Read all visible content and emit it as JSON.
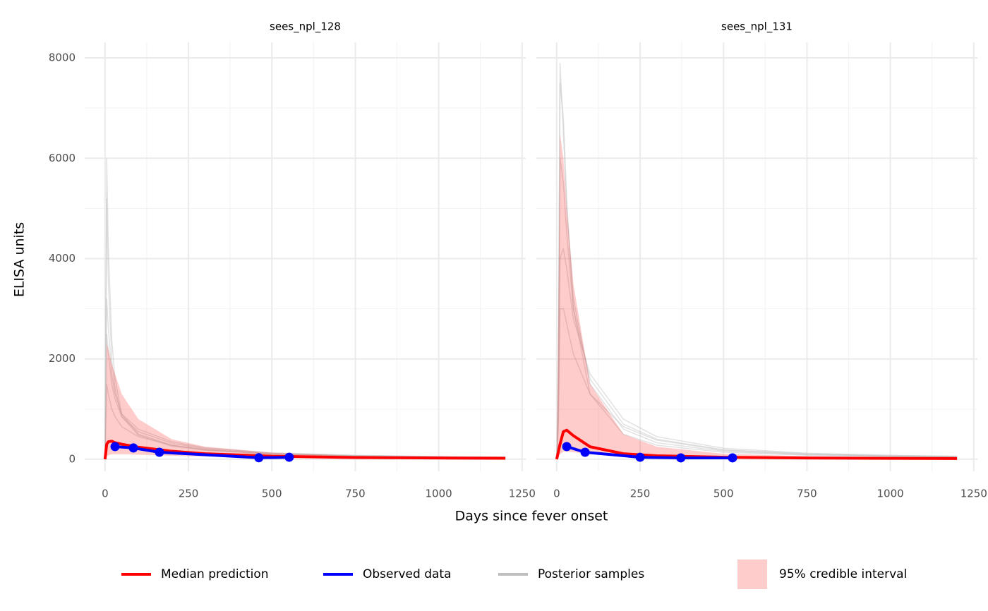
{
  "chart_data": [
    {
      "type": "line",
      "title": "sees_npl_128",
      "xlabel": "Days since fever onset",
      "ylabel": "ELISA units",
      "xlim": [
        -61,
        1261
      ],
      "ylim": [
        -240,
        8310
      ],
      "xticks": [
        0,
        250,
        500,
        750,
        1000,
        1250
      ],
      "xminor": [
        125,
        375,
        625,
        875,
        1125
      ],
      "yticks": [
        0,
        2000,
        4000,
        6000,
        8000
      ],
      "yminor": [
        1000,
        3000,
        5000,
        7000
      ],
      "grid": true,
      "x": [
        0,
        5,
        10,
        20,
        30,
        50,
        100,
        200,
        300,
        500,
        750,
        1000,
        1200
      ],
      "band": {
        "name": "95% credible interval",
        "color": "#ff0000",
        "alpha": 0.2,
        "upper": [
          0,
          2300,
          2200,
          1900,
          1700,
          1300,
          800,
          400,
          250,
          130,
          70,
          45,
          35
        ],
        "lower": [
          0,
          60,
          80,
          100,
          100,
          100,
          90,
          70,
          55,
          35,
          20,
          15,
          12
        ]
      },
      "series": [
        {
          "name": "Median prediction",
          "color": "#ff0000",
          "values": [
            0,
            300,
            350,
            360,
            330,
            300,
            240,
            160,
            110,
            60,
            35,
            25,
            20
          ]
        },
        {
          "name": "Observed data",
          "color": "#0000ff",
          "x": [
            30,
            85,
            163,
            461,
            552
          ],
          "values": [
            253,
            225,
            140,
            30,
            40
          ]
        },
        {
          "name": "Posterior samples",
          "color": "#bebebe",
          "samples": [
            [
              0,
              6000,
              4200,
              2400,
              1600,
              900,
              500,
              280,
              190,
              110,
              70,
              50,
              40
            ],
            [
              0,
              5200,
              3500,
              2000,
              1400,
              850,
              480,
              260,
              180,
              100,
              65,
              45,
              38
            ],
            [
              0,
              3200,
              2600,
              1700,
              1300,
              900,
              600,
              350,
              230,
              130,
              80,
              55,
              45
            ],
            [
              0,
              2500,
              2100,
              1500,
              1200,
              850,
              550,
              320,
              210,
              120,
              75,
              50,
              40
            ],
            [
              0,
              1500,
              1300,
              1000,
              850,
              650,
              450,
              280,
              190,
              110,
              70,
              48,
              38
            ]
          ]
        }
      ]
    },
    {
      "type": "line",
      "title": "sees_npl_131",
      "xlim": [
        -61,
        1261
      ],
      "ylim": [
        -240,
        8310
      ],
      "xticks": [
        0,
        250,
        500,
        750,
        1000,
        1250
      ],
      "xminor": [
        125,
        375,
        625,
        875,
        1125
      ],
      "yticks": [
        0,
        2000,
        4000,
        6000,
        8000
      ],
      "yminor": [
        1000,
        3000,
        5000,
        7000
      ],
      "grid": true,
      "x": [
        0,
        5,
        10,
        20,
        30,
        50,
        100,
        200,
        300,
        500,
        750,
        1000,
        1200
      ],
      "band": {
        "color": "#ff0000",
        "alpha": 0.2,
        "upper": [
          0,
          3000,
          6500,
          6000,
          5000,
          3500,
          1500,
          500,
          250,
          110,
          60,
          40,
          30
        ],
        "lower": [
          0,
          50,
          100,
          150,
          150,
          140,
          110,
          60,
          40,
          25,
          15,
          10,
          8
        ]
      },
      "series": [
        {
          "color": "#ff0000",
          "values": [
            0,
            150,
            300,
            550,
            580,
            470,
            250,
            110,
            70,
            40,
            25,
            18,
            15
          ]
        },
        {
          "color": "#0000ff",
          "x": [
            30,
            85,
            250,
            372,
            527
          ],
          "values": [
            253,
            140,
            40,
            28,
            28
          ]
        },
        {
          "color": "#bebebe",
          "samples": [
            [
              0,
              2000,
              7900,
              6500,
              5000,
              3200,
              1500,
              600,
              330,
              160,
              90,
              60,
              48
            ],
            [
              0,
              1500,
              7500,
              6800,
              5200,
              3000,
              1300,
              500,
              280,
              140,
              80,
              55,
              44
            ],
            [
              0,
              1000,
              6000,
              5500,
              4500,
              3000,
              1600,
              700,
              400,
              190,
              110,
              70,
              55
            ],
            [
              0,
              800,
              4000,
              4200,
              3800,
              2800,
              1700,
              800,
              450,
              220,
              120,
              80,
              60
            ],
            [
              0,
              600,
              3000,
              3000,
              2700,
              2100,
              1300,
              650,
              380,
              180,
              100,
              65,
              50
            ]
          ]
        }
      ]
    }
  ]
}
